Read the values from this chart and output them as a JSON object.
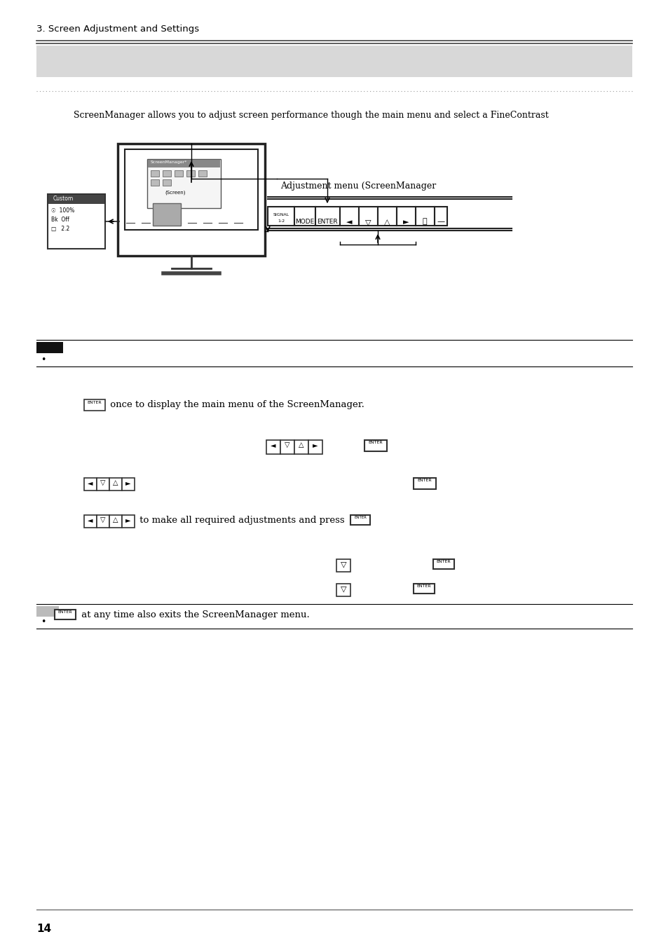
{
  "page_number": "14",
  "section_title": "3. Screen Adjustment and Settings",
  "header_bg_color": "#d8d8d8",
  "intro_text": "ScreenManager allows you to adjust screen performance though the main menu and select a FineContrast",
  "label_adjustment_menu": "Adjustment menu (ScreenManager",
  "note_bullet": "•",
  "step1_text": " once to display the main menu of the ScreenManager.",
  "step3_text": " to make all required adjustments and press",
  "note2_suffix": " at any time also exits the ScreenManager menu.",
  "footer_text": "14",
  "bg_color": "#ffffff",
  "text_color": "#000000",
  "dotted_line_color": "#888888"
}
